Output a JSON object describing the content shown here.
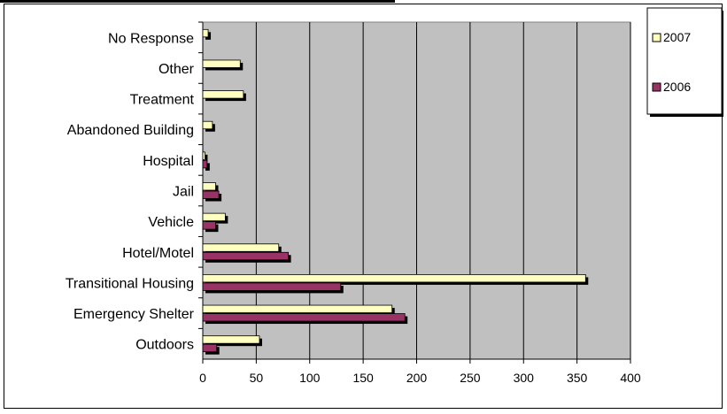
{
  "chart_data": {
    "type": "bar",
    "orientation": "horizontal",
    "categories": [
      "No Response",
      "Other",
      "Treatment",
      "Abandoned Building",
      "Hospital",
      "Jail",
      "Vehicle",
      "Hotel/Motel",
      "Transitional Housing",
      "Emergency Shelter",
      "Outdoors"
    ],
    "series": [
      {
        "name": "2007",
        "color": "#ffffc0",
        "values": [
          5,
          35,
          38,
          9,
          2,
          12,
          21,
          71,
          358,
          177,
          53
        ]
      },
      {
        "name": "2006",
        "color": "#993366",
        "values": [
          0,
          0,
          0,
          0,
          4,
          15,
          12,
          80,
          129,
          189,
          13
        ]
      }
    ],
    "xlim": [
      0,
      400
    ],
    "xticks": [
      "0",
      "50",
      "100",
      "150",
      "200",
      "250",
      "300",
      "350",
      "400"
    ],
    "grid": true,
    "plot_background": "#c0c0c0",
    "legend_position": "top-right",
    "title": "",
    "xlabel": "",
    "ylabel": ""
  }
}
